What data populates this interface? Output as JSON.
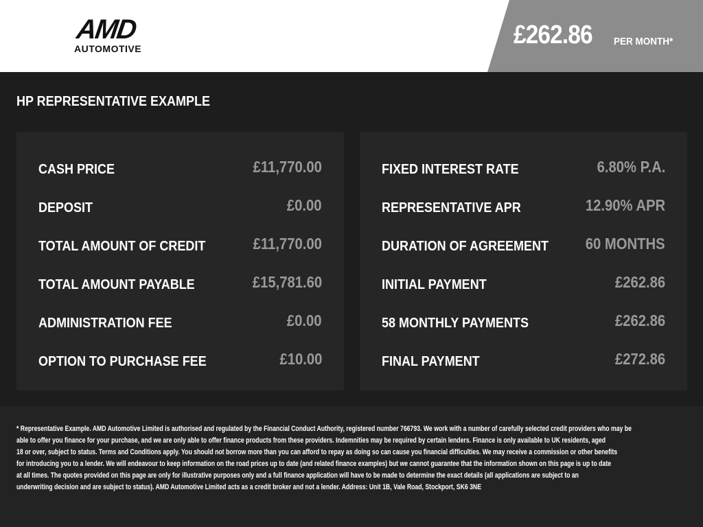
{
  "brand": {
    "logo_main": "AMD",
    "logo_sub": "AUTOMOTIVE"
  },
  "header": {
    "price": "£262.86",
    "per_month": "PER MONTH*"
  },
  "title": "HP REPRESENTATIVE EXAMPLE",
  "left": [
    {
      "label": "CASH PRICE",
      "value": "£11,770.00"
    },
    {
      "label": "DEPOSIT",
      "value": "£0.00"
    },
    {
      "label": "TOTAL AMOUNT OF CREDIT",
      "value": "£11,770.00"
    },
    {
      "label": "TOTAL AMOUNT PAYABLE",
      "value": "£15,781.60"
    },
    {
      "label": "ADMINISTRATION FEE",
      "value": "£0.00"
    },
    {
      "label": "OPTION TO PURCHASE FEE",
      "value": "£10.00"
    }
  ],
  "right": [
    {
      "label": "FIXED INTEREST RATE",
      "value": "6.80% P.A."
    },
    {
      "label": "REPRESENTATIVE APR",
      "value": "12.90% APR"
    },
    {
      "label": "DURATION OF AGREEMENT",
      "value": "60 MONTHS"
    },
    {
      "label": "INITIAL PAYMENT",
      "value": "£262.86"
    },
    {
      "label": "58 MONTHLY PAYMENTS",
      "value": "£262.86"
    },
    {
      "label": "FINAL PAYMENT",
      "value": "£272.86"
    }
  ],
  "disclaimer": [
    "* Representative Example. AMD Automotive Limited is authorised and regulated by the Financial Conduct Authority, registered number 766793. We work with a number of carefully selected credit providers who may be",
    "able to offer you finance for your purchase, and we are only able to offer finance products from these providers. Indemnities may be required by certain lenders. Finance is only available to UK residents, aged",
    "18 or over, subject to status. Terms and Conditions apply. You should not borrow more than you can afford to repay as doing so can cause you financial difficulties. We may receive a commission or other benefits",
    "for introducing you to a lender. We will endeavour to keep information on the road prices up to date (and related finance examples) but we cannot guarantee that the information shown on this page is up to date",
    "at all times. The quotes provided on this page are only for illustrative purposes only and a full finance application will have to be made to determine the exact details (all applications are subject to an",
    "underwriting decision and are subject to status). AMD Automotive Limited acts as a credit broker and not a lender. Address: Unit 1B, Vale Road, Stockport, SK6 3NE"
  ]
}
